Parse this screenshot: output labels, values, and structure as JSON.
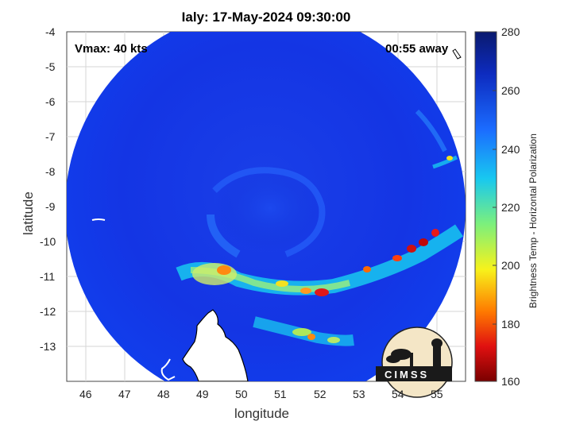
{
  "title": "Ialy: 17-May-2024 09:30:00",
  "vmax_text": "Vmax: 40 kts",
  "time_away_text": "00:55 away",
  "xlabel": "longitude",
  "ylabel": "latitude",
  "colorbar_label": "Brightness Temp - Horizontal Polarization",
  "logo_text": "CIMSS",
  "x_ticks": [
    "46",
    "47",
    "48",
    "49",
    "50",
    "51",
    "52",
    "53",
    "54",
    "55"
  ],
  "y_ticks": [
    "-4",
    "-5",
    "-6",
    "-7",
    "-8",
    "-9",
    "-10",
    "-11",
    "-12",
    "-13"
  ],
  "colorbar_ticks": [
    "280",
    "260",
    "240",
    "220",
    "200",
    "180",
    "160"
  ],
  "colors": {
    "background_swath": "#1432e6",
    "colorbar_top": "#0a1a6e",
    "colorbar_bottom": "#7a0000",
    "coastline": "#ffffff"
  },
  "chart_data": {
    "type": "heatmap",
    "title": "Ialy: 17-May-2024 09:30:00",
    "xlabel": "longitude",
    "ylabel": "latitude",
    "xlim": [
      45.6,
      55.7
    ],
    "ylim": [
      -14,
      -4
    ],
    "colorbar": {
      "label": "Brightness Temp - Horizontal Polarization",
      "range": [
        160,
        280
      ],
      "ticks": [
        160,
        180,
        200,
        220,
        240,
        260,
        280
      ]
    },
    "grid": true
  }
}
